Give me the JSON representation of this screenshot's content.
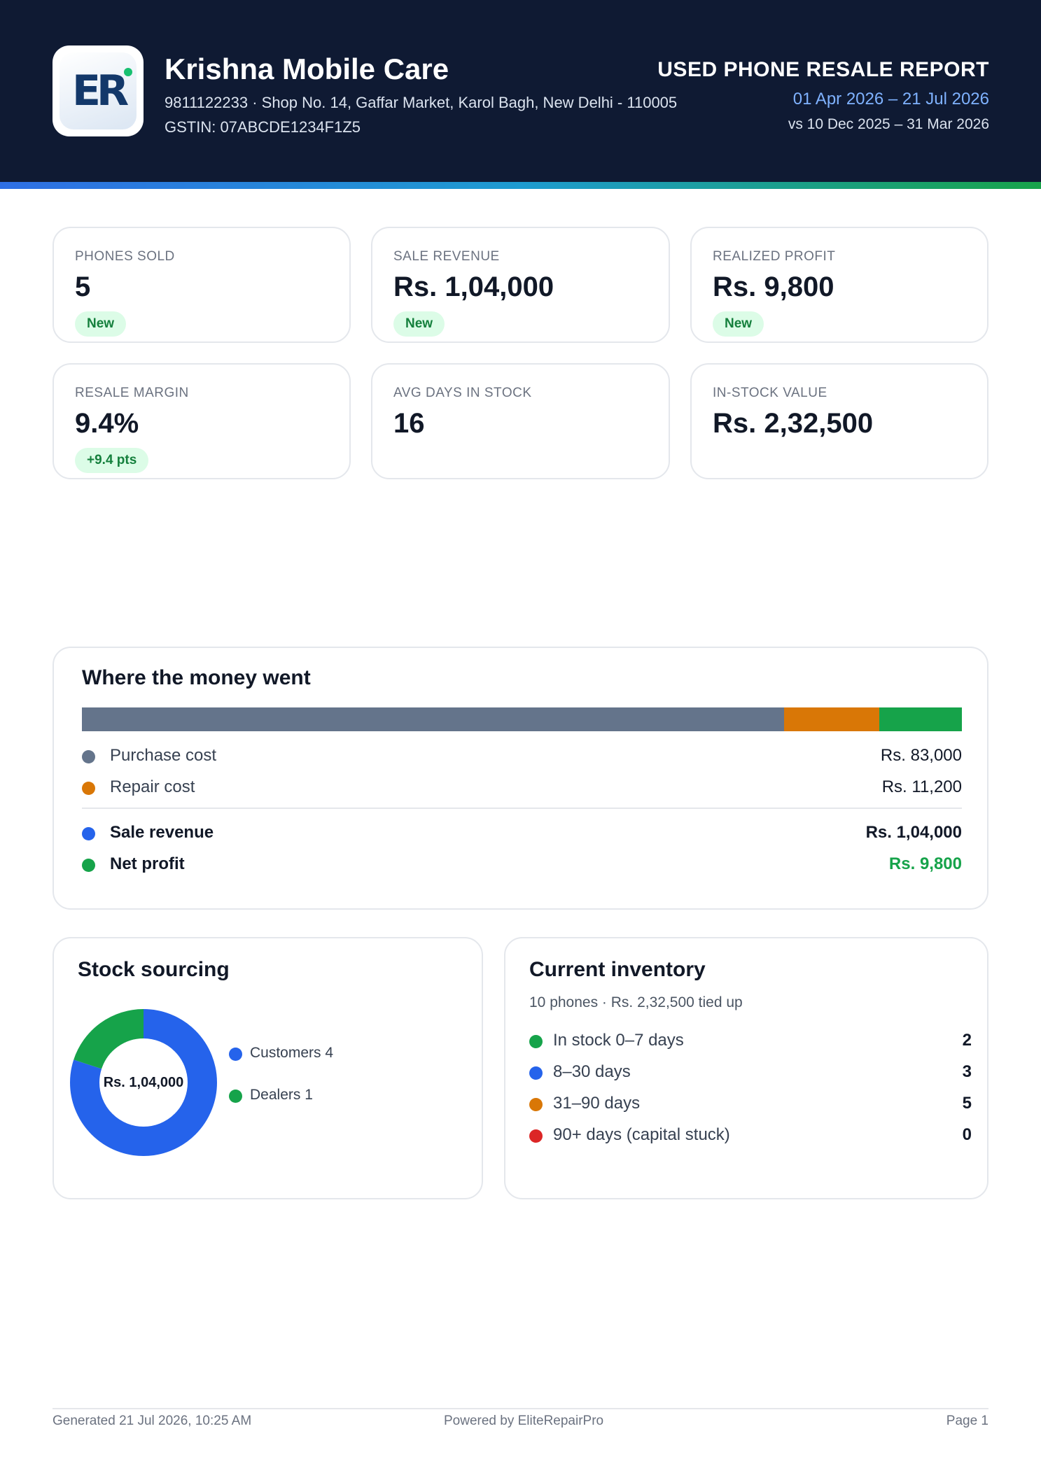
{
  "header": {
    "logo_text": "ER",
    "shop_name": "Krishna Mobile Care",
    "contact_line": "9811122233  ·  Shop No. 14, Gaffar Market, Karol Bagh, New Delhi - 110005",
    "gstin": "GSTIN: 07ABCDE1234F1Z5",
    "report_title": "USED PHONE RESALE REPORT",
    "date_range": "01 Apr 2026  –  21 Jul 2026",
    "compare_range": "vs 10 Dec 2025 – 31 Mar 2026"
  },
  "kpis": [
    {
      "label": "PHONES SOLD",
      "value": "5",
      "badge": "New"
    },
    {
      "label": "SALE REVENUE",
      "value": "Rs. 1,04,000",
      "badge": "New"
    },
    {
      "label": "REALIZED PROFIT",
      "value": "Rs. 9,800",
      "badge": "New"
    },
    {
      "label": "RESALE MARGIN",
      "value": "9.4%",
      "badge": "+9.4 pts"
    },
    {
      "label": "AVG DAYS IN STOCK",
      "value": "16"
    },
    {
      "label": "IN-STOCK VALUE",
      "value": "Rs. 2,32,500"
    }
  ],
  "money": {
    "title": "Where the money went",
    "segments": [
      {
        "name": "Purchase cost",
        "value": 83000,
        "color": "#64748b"
      },
      {
        "name": "Repair cost",
        "value": 11200,
        "color": "#d97706"
      },
      {
        "name": "Net profit",
        "value": 9800,
        "color": "#16a34a"
      }
    ],
    "rows": [
      {
        "label": "Purchase cost",
        "value": "Rs. 83,000",
        "color": "#64748b"
      },
      {
        "label": "Repair cost",
        "value": "Rs. 11,200",
        "color": "#d97706"
      },
      {
        "label": "Sale revenue",
        "value": "Rs. 1,04,000",
        "color": "#2563eb"
      },
      {
        "label": "Net profit",
        "value": "Rs. 9,800",
        "color": "#16a34a",
        "value_color": "#16a34a"
      }
    ]
  },
  "sourcing": {
    "title": "Stock sourcing",
    "center": "Rs. 1,04,000",
    "slices": [
      {
        "name": "Customers",
        "count": 4,
        "label": "Customers 4",
        "color": "#2563eb"
      },
      {
        "name": "Dealers",
        "count": 1,
        "label": "Dealers 1",
        "color": "#16a34a"
      }
    ]
  },
  "inventory": {
    "title": "Current inventory",
    "subtitle": "10 phones · Rs. 2,32,500 tied up",
    "rows": [
      {
        "label": "In stock 0–7 days",
        "count": "2",
        "color": "#16a34a"
      },
      {
        "label": "8–30 days",
        "count": "3",
        "color": "#2563eb"
      },
      {
        "label": "31–90 days",
        "count": "5",
        "color": "#d97706"
      },
      {
        "label": "90+ days (capital stuck)",
        "count": "0",
        "color": "#dc2626"
      }
    ]
  },
  "footer": {
    "generated": "Generated 21 Jul 2026, 10:25 AM",
    "powered": "Powered by EliteRepairPro",
    "page": "Page 1"
  }
}
